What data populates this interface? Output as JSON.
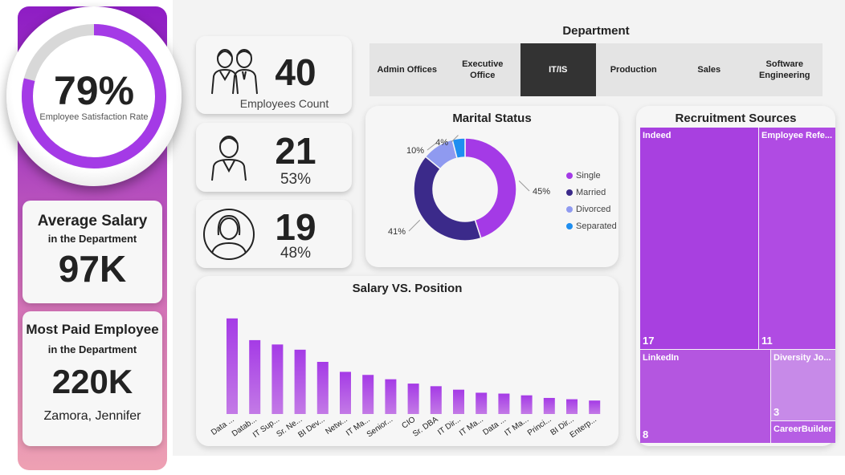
{
  "satisfaction": {
    "value_label": "79%",
    "value": 0.79,
    "label": "Employee Satisfaction Rate"
  },
  "avg_salary": {
    "title": "Average Salary",
    "subtitle": "in the Department",
    "value": "97K"
  },
  "most_paid": {
    "title": "Most Paid Employee",
    "subtitle": "in the Department",
    "value": "220K",
    "name": "Zamora, Jennifer"
  },
  "employees": {
    "count": "40",
    "label": "Employees Count"
  },
  "male": {
    "count": "21",
    "percent": "53%"
  },
  "female": {
    "count": "19",
    "percent": "48%"
  },
  "department": {
    "title": "Department",
    "items": [
      "Admin Offices",
      "Executive Office",
      "IT/IS",
      "Production",
      "Sales",
      "Software Engineering"
    ],
    "selected": "IT/IS"
  },
  "marital": {
    "title": "Marital Status",
    "slices": [
      {
        "name": "Single",
        "value": 45,
        "label": "45%",
        "color": "#a43ae6"
      },
      {
        "name": "Married",
        "value": 41,
        "label": "41%",
        "color": "#3b2a8a"
      },
      {
        "name": "Divorced",
        "value": 10,
        "label": "10%",
        "color": "#8f9af0"
      },
      {
        "name": "Separated",
        "value": 4,
        "label": "4%",
        "color": "#1e8ef0"
      }
    ]
  },
  "chart_data": {
    "type": "bar",
    "title": "Salary VS. Position",
    "categories": [
      "Data ...",
      "Datab...",
      "IT Sup...",
      "Sr. Ne...",
      "BI Dev...",
      "Netw...",
      "IT Ma...",
      "Senior...",
      "CIO",
      "Sr. DBA",
      "IT Dir...",
      "IT Ma...",
      "Data ...",
      "IT Ma...",
      "Princi...",
      "BI Dir...",
      "Enterp..."
    ],
    "values": [
      220,
      170,
      160,
      148,
      120,
      97,
      90,
      80,
      70,
      64,
      56,
      49,
      47,
      43,
      37,
      34,
      31
    ],
    "ylim": [
      0,
      240
    ],
    "grid": false,
    "colors": {
      "bar_top": "#a53be6",
      "bar_bottom": "#c37ae6"
    }
  },
  "recruitment": {
    "title": "Recruitment Sources",
    "items": [
      {
        "label": "Indeed",
        "count": "17",
        "color": "#a840e0"
      },
      {
        "label": "Employee Refe...",
        "count": "11",
        "color": "#b04be3"
      },
      {
        "label": "LinkedIn",
        "count": "8",
        "color": "#b456e0"
      },
      {
        "label": "Diversity Jo...",
        "count": "3",
        "color": "#c78ae8"
      },
      {
        "label": "CareerBuilder",
        "count": "",
        "color": "#b65ee4"
      }
    ]
  },
  "colors": {
    "accent": "#a43ae6",
    "selected_bg": "#333333"
  }
}
